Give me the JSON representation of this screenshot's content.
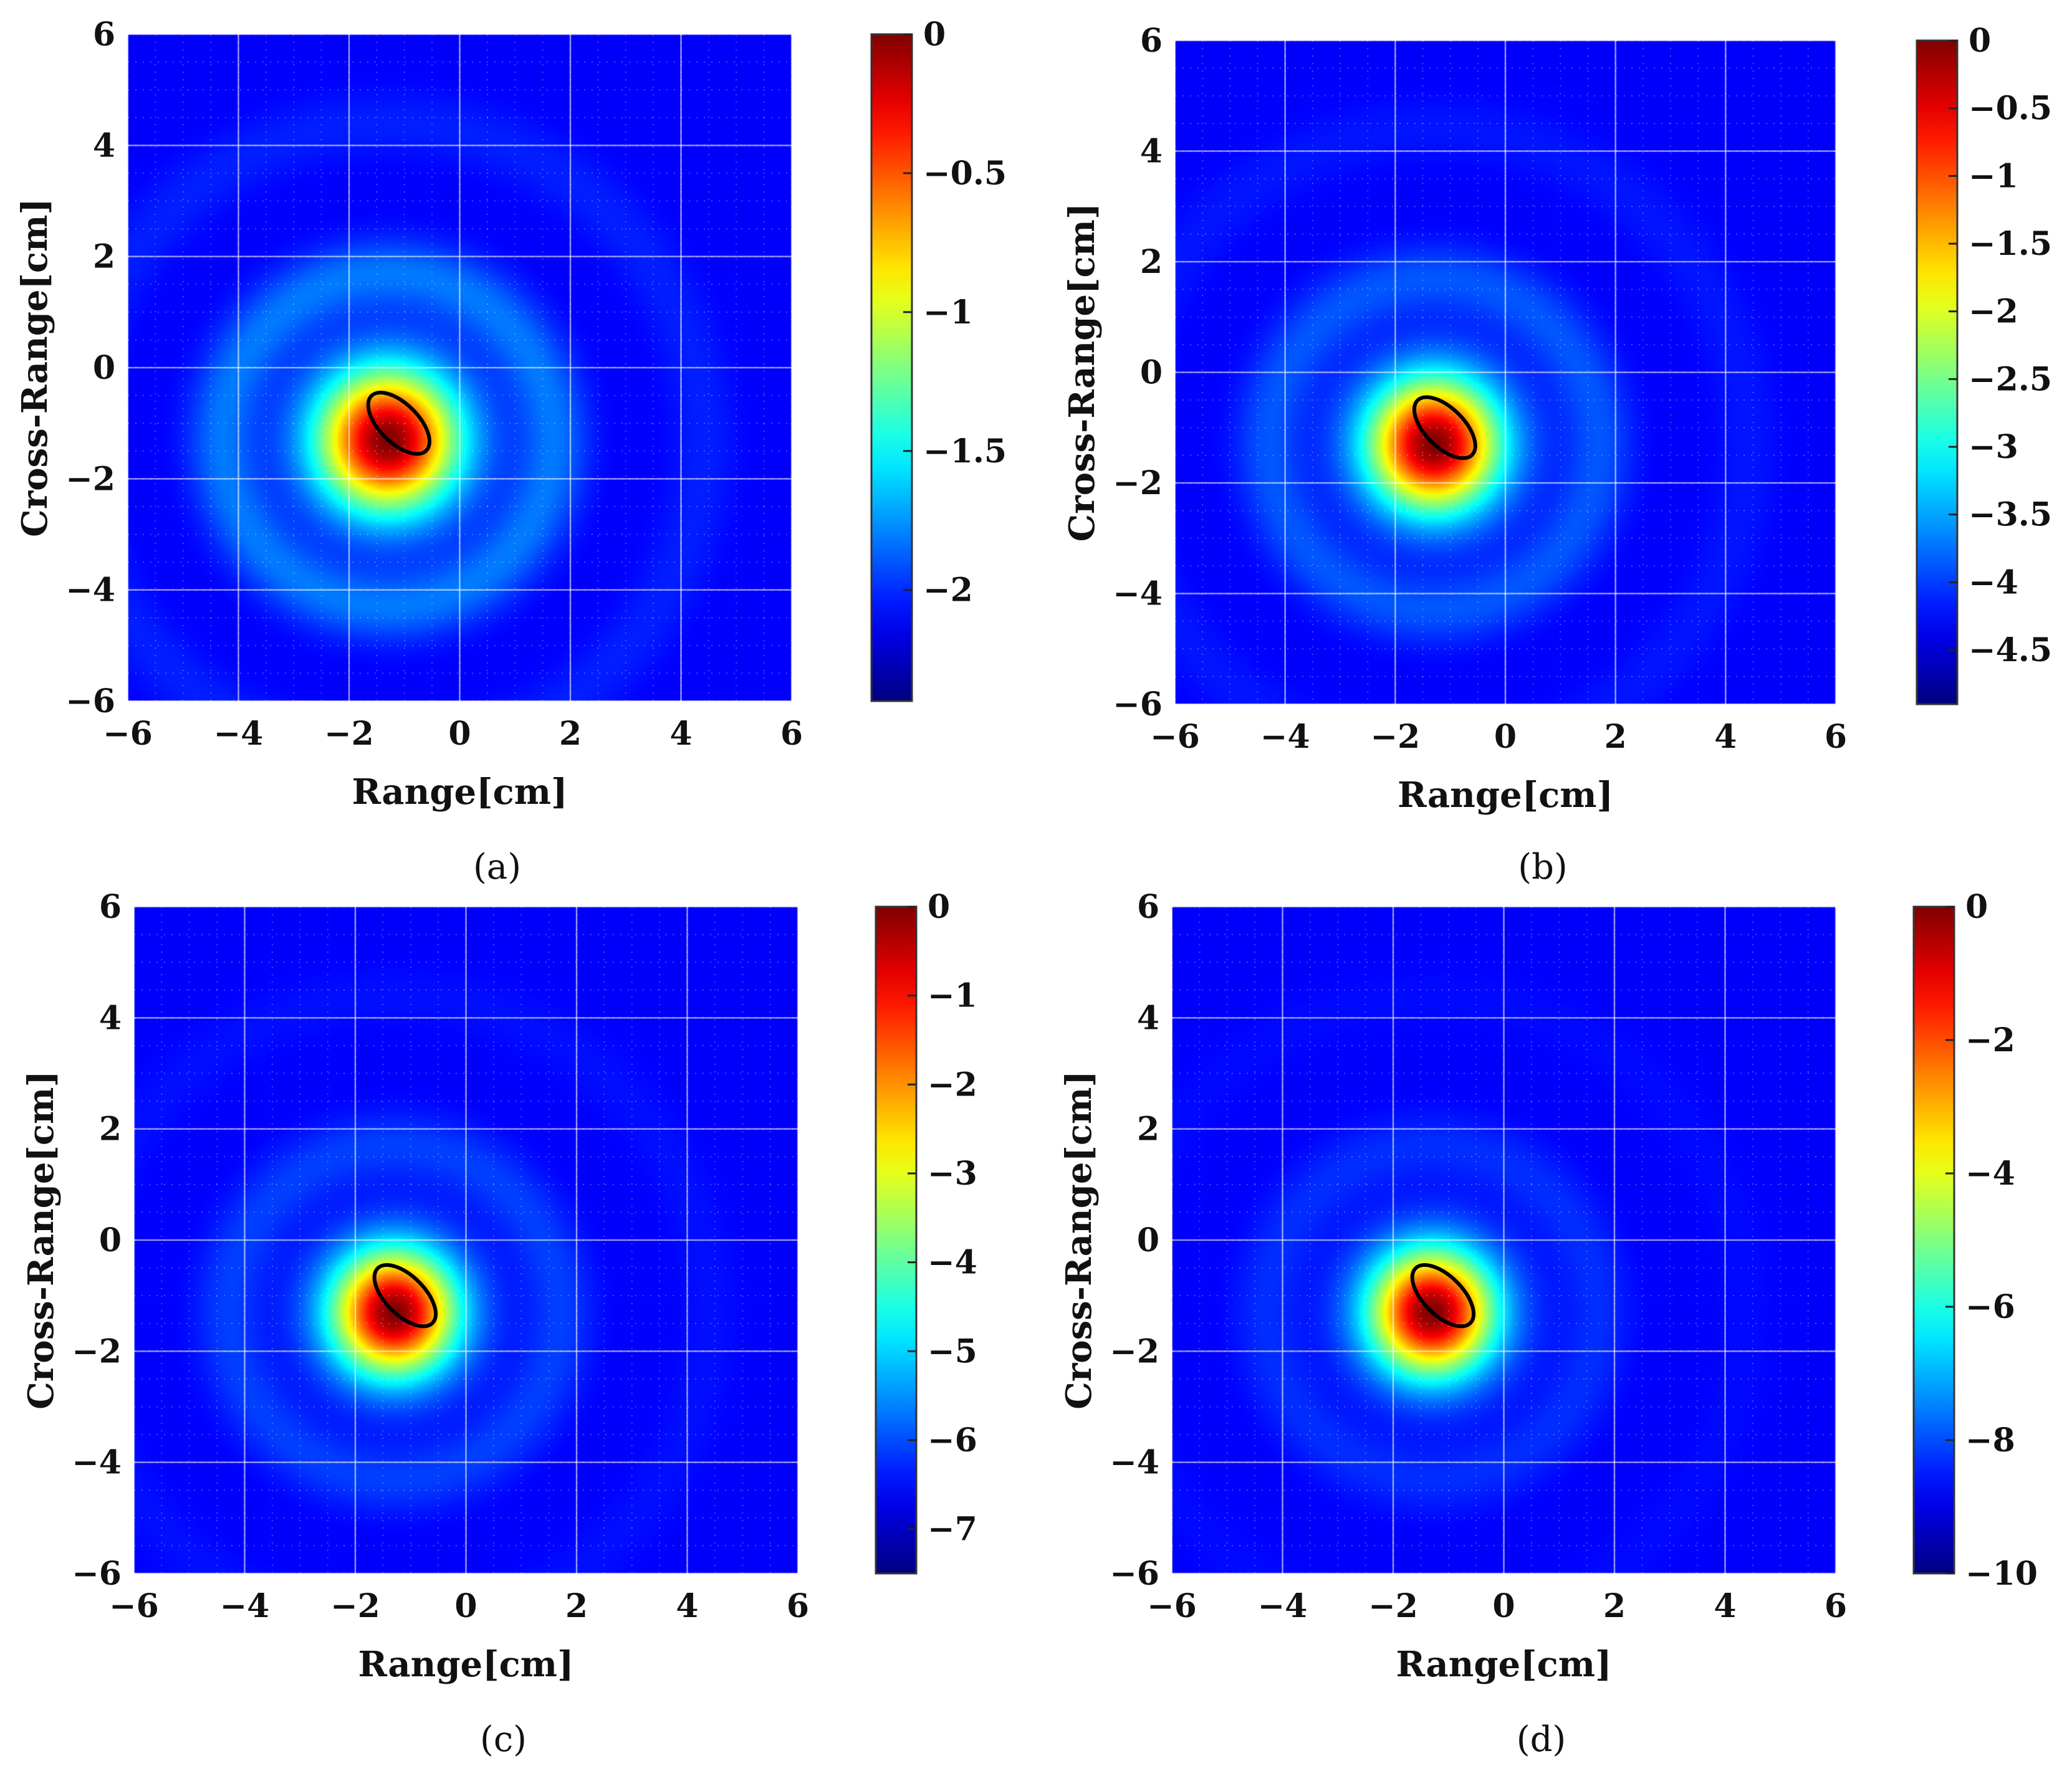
{
  "chart_data": [
    {
      "id": "a",
      "type": "heatmap",
      "caption": "(a)",
      "xlabel": "Range[cm]",
      "ylabel": "Cross-Range[cm]",
      "xlim": [
        -6,
        6
      ],
      "ylim": [
        -6,
        6
      ],
      "x_ticks": [
        -6,
        -4,
        -2,
        0,
        2,
        4,
        6
      ],
      "y_ticks": [
        -6,
        -4,
        -2,
        0,
        2,
        4,
        6
      ],
      "x_tick_labels": [
        "−6",
        "−4",
        "−2",
        "0",
        "2",
        "4",
        "6"
      ],
      "y_tick_labels": [
        "−6",
        "−4",
        "−2",
        "0",
        "2",
        "4",
        "6"
      ],
      "grid": true,
      "colormap": "jet",
      "clim": [
        -2.4,
        0
      ],
      "colorbar_ticks": [
        0,
        -0.5,
        -1,
        -1.5,
        -2
      ],
      "colorbar_tick_labels": [
        "0",
        "−0.5",
        "−1",
        "−1.5",
        "−2"
      ],
      "peak": {
        "x": -1.3,
        "y": -1.3,
        "sigma_cm": 0.9
      },
      "ring": {
        "radius_cm": 3.0,
        "width_cm": 0.9,
        "relative_level": 0.55
      },
      "target_ellipse": {
        "center": [
          -1.1,
          -1.0
        ],
        "semi_axes_cm": [
          0.7,
          0.35
        ],
        "angle_deg": -45
      }
    },
    {
      "id": "b",
      "type": "heatmap",
      "caption": "(b)",
      "xlabel": "Range[cm]",
      "ylabel": "Cross-Range[cm]",
      "xlim": [
        -6,
        6
      ],
      "ylim": [
        -6,
        6
      ],
      "x_ticks": [
        -6,
        -4,
        -2,
        0,
        2,
        4,
        6
      ],
      "y_ticks": [
        -6,
        -4,
        -2,
        0,
        2,
        4,
        6
      ],
      "x_tick_labels": [
        "−6",
        "−4",
        "−2",
        "0",
        "2",
        "4",
        "6"
      ],
      "y_tick_labels": [
        "−6",
        "−4",
        "−2",
        "0",
        "2",
        "4",
        "6"
      ],
      "grid": true,
      "colormap": "jet",
      "clim": [
        -4.9,
        0
      ],
      "colorbar_ticks": [
        0,
        -0.5,
        -1,
        -1.5,
        -2,
        -2.5,
        -3,
        -3.5,
        -4,
        -4.5
      ],
      "colorbar_tick_labels": [
        "0",
        "−0.5",
        "−1",
        "−1.5",
        "−2",
        "−2.5",
        "−3",
        "−3.5",
        "−4",
        "−4.5"
      ],
      "peak": {
        "x": -1.3,
        "y": -1.3,
        "sigma_cm": 0.85
      },
      "ring": {
        "radius_cm": 3.0,
        "width_cm": 0.9,
        "relative_level": 0.4
      },
      "target_ellipse": {
        "center": [
          -1.1,
          -1.0
        ],
        "semi_axes_cm": [
          0.7,
          0.35
        ],
        "angle_deg": -45
      }
    },
    {
      "id": "c",
      "type": "heatmap",
      "caption": "(c)",
      "xlabel": "Range[cm]",
      "ylabel": "Cross-Range[cm]",
      "xlim": [
        -6,
        6
      ],
      "ylim": [
        -6,
        6
      ],
      "x_ticks": [
        -6,
        -4,
        -2,
        0,
        2,
        4,
        6
      ],
      "y_ticks": [
        -6,
        -4,
        -2,
        0,
        2,
        4,
        6
      ],
      "x_tick_labels": [
        "−6",
        "−4",
        "−2",
        "0",
        "2",
        "4",
        "6"
      ],
      "y_tick_labels": [
        "−6",
        "−4",
        "−2",
        "0",
        "2",
        "4",
        "6"
      ],
      "grid": true,
      "colormap": "jet",
      "clim": [
        -7.5,
        0
      ],
      "colorbar_ticks": [
        0,
        -1,
        -2,
        -3,
        -4,
        -5,
        -6,
        -7
      ],
      "colorbar_tick_labels": [
        "0",
        "−1",
        "−2",
        "−3",
        "−4",
        "−5",
        "−6",
        "−7"
      ],
      "peak": {
        "x": -1.3,
        "y": -1.3,
        "sigma_cm": 0.8
      },
      "ring": {
        "radius_cm": 3.0,
        "width_cm": 0.9,
        "relative_level": 0.3
      },
      "target_ellipse": {
        "center": [
          -1.1,
          -1.0
        ],
        "semi_axes_cm": [
          0.7,
          0.35
        ],
        "angle_deg": -45
      }
    },
    {
      "id": "d",
      "type": "heatmap",
      "caption": "(d)",
      "xlabel": "Range[cm]",
      "ylabel": "Cross-Range[cm]",
      "xlim": [
        -6,
        6
      ],
      "ylim": [
        -6,
        6
      ],
      "x_ticks": [
        -6,
        -4,
        -2,
        0,
        2,
        4,
        6
      ],
      "y_ticks": [
        -6,
        -4,
        -2,
        0,
        2,
        4,
        6
      ],
      "x_tick_labels": [
        "−6",
        "−4",
        "−2",
        "0",
        "2",
        "4",
        "6"
      ],
      "y_tick_labels": [
        "−6",
        "−4",
        "−2",
        "0",
        "2",
        "4",
        "6"
      ],
      "grid": true,
      "colormap": "jet",
      "clim": [
        -10,
        0
      ],
      "colorbar_ticks": [
        0,
        -2,
        -4,
        -6,
        -8,
        -10
      ],
      "colorbar_tick_labels": [
        "0",
        "−2",
        "−4",
        "−6",
        "−8",
        "−10"
      ],
      "peak": {
        "x": -1.3,
        "y": -1.3,
        "sigma_cm": 0.8
      },
      "ring": {
        "radius_cm": 3.0,
        "width_cm": 0.9,
        "relative_level": 0.22
      },
      "target_ellipse": {
        "center": [
          -1.1,
          -1.0
        ],
        "semi_axes_cm": [
          0.7,
          0.35
        ],
        "angle_deg": -45
      }
    }
  ]
}
